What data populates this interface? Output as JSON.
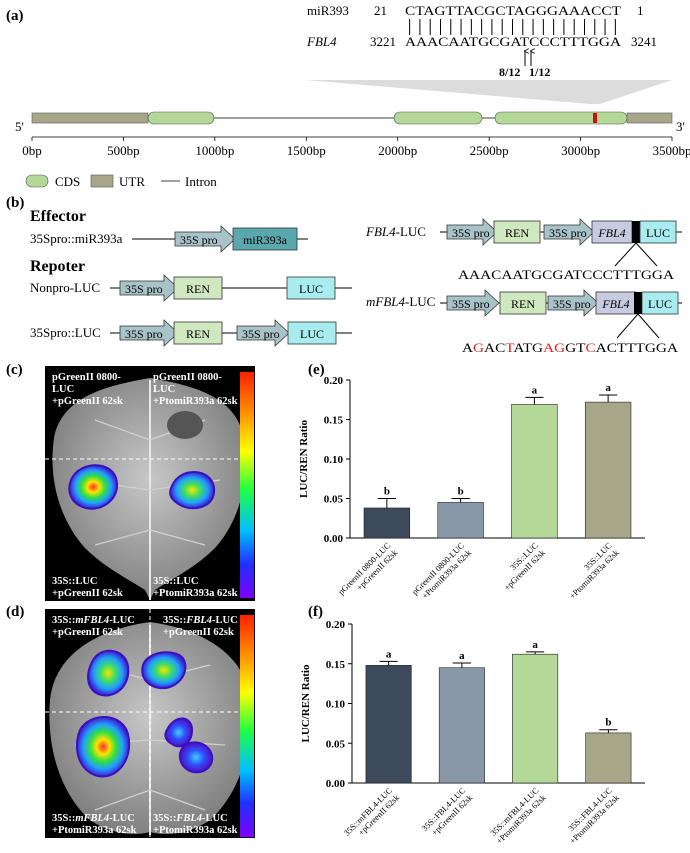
{
  "panels": {
    "a": "(a)",
    "b": "(b)",
    "c": "(c)",
    "d": "(d)",
    "e": "(e)",
    "f": "(f)"
  },
  "panel_a": {
    "mirna_label": "miR393",
    "mirna_start": "21",
    "mirna_seq": "CTAGTTACGCTAGGGAAACCT",
    "mirna_end": "1",
    "target_label": "FBL4",
    "target_start": "3221",
    "target_seq": "AAACAATGCGATCCCTTTGGA",
    "target_end": "3241",
    "cleavage_1": "8/12",
    "cleavage_2": "1/12",
    "five_prime": "5'",
    "three_prime": "3'",
    "scale_ticks": [
      "0bp",
      "500bp",
      "1000bp",
      "1500bp",
      "2000bp",
      "2500bp",
      "3000bp",
      "3500bp"
    ],
    "legend": {
      "cds": "CDS",
      "utr": "UTR",
      "intron": "Intron"
    }
  },
  "panel_b": {
    "effector": "Effector",
    "repoter": "Repoter",
    "row1": "35Spro::miR393a",
    "row2": "Nonpro-LUC",
    "row3": "35Spro::LUC",
    "fbl4_luc": "FBL4-LUC",
    "mfbl4_luc": "mFBL4-LUC",
    "pro": "35S pro",
    "mir": "miR393a",
    "ren": "REN",
    "luc": "LUC",
    "fbl4": "FBL4",
    "wt_seq": "AAACAATGCGATCCCTTTGGA",
    "mut_seq": [
      [
        "A",
        "#000"
      ],
      [
        "G",
        "#e02020"
      ],
      [
        "A",
        "#000"
      ],
      [
        "C",
        "#000"
      ],
      [
        "T",
        "#e02020"
      ],
      [
        "A",
        "#000"
      ],
      [
        "T",
        "#000"
      ],
      [
        "G",
        "#000"
      ],
      [
        "A",
        "#e02020"
      ],
      [
        "G",
        "#e02020"
      ],
      [
        "G",
        "#000"
      ],
      [
        "T",
        "#000"
      ],
      [
        "C",
        "#e02020"
      ],
      [
        "A",
        "#000"
      ],
      [
        "C",
        "#000"
      ],
      [
        "T",
        "#000"
      ],
      [
        "T",
        "#000"
      ],
      [
        "T",
        "#000"
      ],
      [
        "G",
        "#000"
      ],
      [
        "G",
        "#000"
      ],
      [
        "A",
        "#000"
      ]
    ]
  },
  "panel_c": {
    "tl": [
      "pGreenII 0800-",
      "LUC",
      "+pGreenII 62sk"
    ],
    "tr": [
      "pGreenII 0800-",
      "LUC",
      "+PtomiR393a 62sk"
    ],
    "bl": [
      "35S::LUC",
      "+pGreenII 62sk"
    ],
    "br": [
      "35S::LUC",
      "+PtomiR393a 62sk"
    ]
  },
  "panel_d": {
    "tl": [
      "35S::mFBL4-LUC",
      "+pGreenII 62sk"
    ],
    "tr": [
      "35S::FBL4-LUC",
      "+pGreenII 62sk"
    ],
    "bl": [
      "35S::mFBL4-LUC",
      "+PtomiR393a 62sk"
    ],
    "br": [
      "35S::FBL4-LUC",
      "+PtomiR393a 62sk"
    ]
  },
  "chart_data": [
    {
      "type": "bar",
      "ylabel": "LUC/REN Ratio",
      "ylim": [
        0,
        0.2
      ],
      "yticks": [
        "0.00",
        "0.05",
        "0.10",
        "0.15",
        "0.20"
      ],
      "categories": [
        [
          "pGreenII 0800-LUC",
          "+pGreenII 62sk"
        ],
        [
          "pGreenII 0800-LUC",
          "+PtomiR393a 62sk"
        ],
        [
          "35S::LUC",
          "+pGreenII 62sk"
        ],
        [
          "35S::LUC",
          "+PtomiR393a 62sk"
        ]
      ],
      "values": [
        0.038,
        0.045,
        0.169,
        0.172
      ],
      "errors": [
        0.012,
        0.005,
        0.009,
        0.009
      ],
      "letters": [
        "b",
        "b",
        "a",
        "a"
      ],
      "colors": [
        "#3c4a5c",
        "#8898a8",
        "#b4d898",
        "#a8a688"
      ]
    },
    {
      "type": "bar",
      "ylabel": "LUC/REN Ratio",
      "ylim": [
        0,
        0.2
      ],
      "yticks": [
        "0.00",
        "0.05",
        "0.10",
        "0.15",
        "0.20"
      ],
      "categories": [
        [
          "35S::mFBL4-LUC",
          "+pGreenII 62sk"
        ],
        [
          "35S::FBL4-LUC",
          "+pGreenII 62sk"
        ],
        [
          "35S::mFBL4-LUC",
          "+PtomiR393a 62sk"
        ],
        [
          "35S::FBL4-LUC",
          "+PtomiR393a 62sk"
        ]
      ],
      "values": [
        0.148,
        0.145,
        0.162,
        0.063
      ],
      "errors": [
        0.005,
        0.006,
        0.003,
        0.004
      ],
      "letters": [
        "a",
        "a",
        "a",
        "b"
      ],
      "colors": [
        "#3c4a5c",
        "#8898a8",
        "#b4d898",
        "#a8a688"
      ]
    }
  ]
}
